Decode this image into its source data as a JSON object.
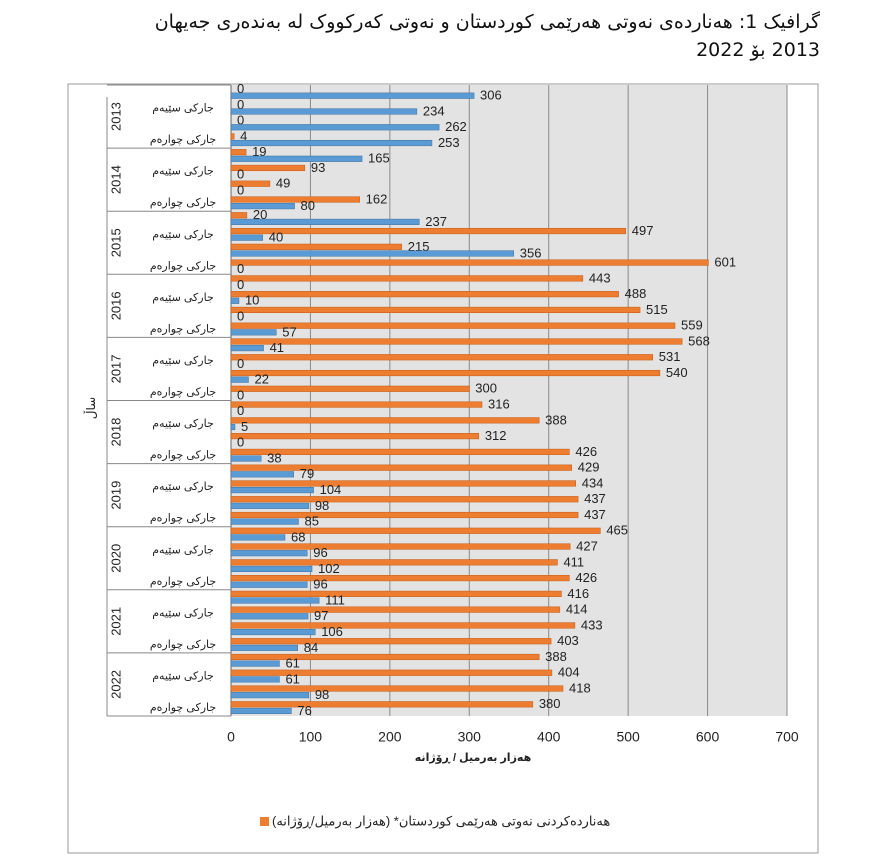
{
  "chart_data": {
    "type": "bar",
    "orientation": "horizontal",
    "title": "گرافیک 1: هەناردەی نەوتی هەرێمی کوردستان و نەوتی کەرکووک لە بەندەری جەیهان 2013 بۆ 2022",
    "x_label": "هەزار بەرمیل / ڕۆژانە",
    "y_label": "ساڵ",
    "years": [
      "2013",
      "2014",
      "2015",
      "2016",
      "2017",
      "2018",
      "2019",
      "2020",
      "2021",
      "2022"
    ],
    "categories": [
      null,
      "جارکی سێیەم",
      null,
      "جارکی چوارەم",
      null,
      "جارکی سێیەم",
      null,
      "جارکی چوارەم",
      null,
      "جارکی سێیەم",
      null,
      "جارکی چوارەم",
      null,
      "جارکی سێیەم",
      null,
      "جارکی چوارەم",
      null,
      "جارکی سێیەم",
      null,
      "جارکی چوارەم",
      null,
      "جارکی سێیەم",
      null,
      "جارکی چوارەم",
      null,
      "جارکی سێیەم",
      null,
      "جارکی چوارەم",
      null,
      "جارکی سێیەم",
      null,
      "جارکی چوارەم",
      null,
      "جارکی سێیەم",
      null,
      "جارکی چوارەم",
      null,
      "جارکی سێیەم",
      null,
      "جارکی چوارەم"
    ],
    "series": [
      {
        "name": "هەناردەکردنی نەوتی هەرێمی کوردستان* (هەزار بەرمیل/ڕۆژانە)",
        "color": "#ed7d31",
        "values": [
          0,
          0,
          0,
          4,
          19,
          93,
          49,
          162,
          20,
          497,
          215,
          601,
          443,
          488,
          515,
          559,
          568,
          531,
          540,
          300,
          316,
          388,
          312,
          426,
          429,
          434,
          437,
          437,
          465,
          427,
          411,
          426,
          416,
          414,
          433,
          403,
          388,
          404,
          418,
          380
        ]
      },
      {
        "color": "#5b9bd5",
        "values": [
          306,
          234,
          262,
          253,
          165,
          0,
          0,
          80,
          237,
          40,
          356,
          0,
          0,
          10,
          0,
          57,
          41,
          0,
          22,
          0,
          0,
          5,
          0,
          38,
          79,
          104,
          98,
          85,
          68,
          96,
          102,
          96,
          111,
          97,
          106,
          84,
          61,
          61,
          98,
          76
        ]
      }
    ],
    "xlim": [
      0,
      700
    ],
    "xticks": [
      0,
      100,
      200,
      300,
      400,
      500,
      600,
      700
    ],
    "grid": true,
    "legend": "bottom"
  }
}
